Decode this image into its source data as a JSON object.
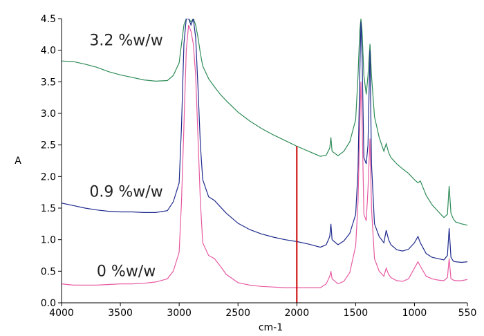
{
  "chart_data": {
    "type": "line",
    "title": "",
    "xlabel": "cm-1",
    "ylabel": "A",
    "xlim": [
      4000,
      550
    ],
    "ylim": [
      0.0,
      4.5
    ],
    "x_reversed": true,
    "grid": false,
    "legend": "none",
    "x_tick_labels": [
      "4000",
      "3500",
      "3000",
      "2500",
      "2000",
      "1500",
      "1000",
      "550"
    ],
    "y_tick_labels": [
      "0.0",
      "0.5",
      "1.0",
      "1.5",
      "2.0",
      "2.5",
      "3.0",
      "3.5",
      "4.0",
      "4.5"
    ],
    "series": [
      {
        "name": "3.2 %w/w",
        "color": "#2e8b57",
        "label_anchor": [
          3450,
          4.08
        ],
        "x": [
          4000,
          3900,
          3800,
          3700,
          3600,
          3500,
          3400,
          3300,
          3200,
          3100,
          3050,
          3000,
          2980,
          2960,
          2940,
          2920,
          2900,
          2880,
          2860,
          2840,
          2820,
          2800,
          2750,
          2700,
          2650,
          2600,
          2500,
          2400,
          2300,
          2200,
          2100,
          2000,
          1900,
          1800,
          1750,
          1720,
          1710,
          1700,
          1650,
          1600,
          1550,
          1500,
          1480,
          1465,
          1455,
          1445,
          1430,
          1410,
          1395,
          1378,
          1365,
          1340,
          1300,
          1260,
          1240,
          1220,
          1200,
          1150,
          1100,
          1050,
          1000,
          970,
          950,
          900,
          850,
          800,
          750,
          720,
          705,
          690,
          670,
          650,
          600,
          550
        ],
        "values": [
          3.83,
          3.82,
          3.78,
          3.73,
          3.66,
          3.61,
          3.57,
          3.53,
          3.51,
          3.52,
          3.6,
          3.8,
          4.1,
          4.4,
          4.5,
          4.5,
          4.45,
          4.5,
          4.4,
          4.2,
          3.95,
          3.75,
          3.55,
          3.42,
          3.3,
          3.2,
          3.02,
          2.88,
          2.76,
          2.66,
          2.57,
          2.48,
          2.4,
          2.32,
          2.34,
          2.45,
          2.62,
          2.4,
          2.33,
          2.4,
          2.55,
          2.9,
          3.6,
          4.3,
          4.5,
          4.3,
          3.6,
          3.3,
          3.6,
          4.1,
          3.6,
          2.95,
          2.62,
          2.4,
          2.52,
          2.38,
          2.3,
          2.2,
          2.12,
          2.05,
          1.95,
          1.9,
          1.93,
          1.7,
          1.55,
          1.45,
          1.35,
          1.4,
          1.85,
          1.42,
          1.33,
          1.28,
          1.25,
          1.23
        ]
      },
      {
        "name": "0.9 %w/w",
        "color": "#1e2a8c",
        "label_anchor": [
          3450,
          1.68
        ],
        "x": [
          4000,
          3900,
          3800,
          3700,
          3600,
          3500,
          3400,
          3300,
          3200,
          3100,
          3050,
          3000,
          2980,
          2960,
          2940,
          2920,
          2900,
          2880,
          2860,
          2840,
          2820,
          2800,
          2750,
          2700,
          2650,
          2600,
          2500,
          2400,
          2300,
          2200,
          2100,
          2000,
          1900,
          1800,
          1750,
          1720,
          1710,
          1700,
          1650,
          1600,
          1550,
          1500,
          1480,
          1465,
          1455,
          1445,
          1430,
          1410,
          1395,
          1378,
          1365,
          1340,
          1300,
          1260,
          1240,
          1220,
          1200,
          1150,
          1100,
          1050,
          1000,
          970,
          950,
          900,
          850,
          800,
          750,
          720,
          705,
          690,
          670,
          650,
          600,
          550
        ],
        "values": [
          1.58,
          1.54,
          1.5,
          1.47,
          1.45,
          1.44,
          1.44,
          1.43,
          1.43,
          1.46,
          1.6,
          1.9,
          2.8,
          4.1,
          4.5,
          4.5,
          4.4,
          4.5,
          4.2,
          3.4,
          2.5,
          1.95,
          1.68,
          1.62,
          1.52,
          1.42,
          1.26,
          1.16,
          1.09,
          1.04,
          1.0,
          0.97,
          0.93,
          0.88,
          0.92,
          1.05,
          1.25,
          1.0,
          0.92,
          0.98,
          1.1,
          1.4,
          2.1,
          3.6,
          4.45,
          3.9,
          2.3,
          2.2,
          2.5,
          4.0,
          2.2,
          1.25,
          1.05,
          0.95,
          1.15,
          1.0,
          0.92,
          0.84,
          0.82,
          0.85,
          0.95,
          1.05,
          0.95,
          0.78,
          0.72,
          0.7,
          0.68,
          0.75,
          1.18,
          0.72,
          0.66,
          0.65,
          0.64,
          0.65
        ]
      },
      {
        "name": "0 %w/w",
        "color": "#e75aa2",
        "label_anchor": [
          3450,
          0.42
        ],
        "x": [
          4000,
          3900,
          3800,
          3700,
          3600,
          3500,
          3400,
          3300,
          3200,
          3100,
          3050,
          3000,
          2980,
          2960,
          2940,
          2920,
          2900,
          2880,
          2860,
          2840,
          2820,
          2800,
          2750,
          2700,
          2650,
          2600,
          2500,
          2400,
          2300,
          2200,
          2100,
          2000,
          1900,
          1800,
          1750,
          1720,
          1710,
          1700,
          1650,
          1600,
          1550,
          1500,
          1480,
          1465,
          1455,
          1445,
          1430,
          1410,
          1395,
          1378,
          1365,
          1340,
          1300,
          1260,
          1240,
          1220,
          1200,
          1150,
          1100,
          1050,
          1000,
          970,
          950,
          900,
          850,
          800,
          750,
          720,
          705,
          690,
          670,
          650,
          600,
          550
        ],
        "values": [
          0.3,
          0.28,
          0.28,
          0.28,
          0.29,
          0.3,
          0.3,
          0.31,
          0.33,
          0.38,
          0.5,
          0.8,
          1.6,
          2.8,
          4.0,
          4.4,
          4.3,
          4.1,
          3.6,
          2.6,
          1.6,
          0.95,
          0.75,
          0.7,
          0.58,
          0.45,
          0.32,
          0.28,
          0.26,
          0.25,
          0.24,
          0.24,
          0.24,
          0.24,
          0.3,
          0.42,
          0.5,
          0.38,
          0.3,
          0.34,
          0.48,
          0.9,
          1.6,
          2.8,
          3.5,
          2.9,
          1.4,
          1.3,
          1.8,
          2.6,
          1.5,
          0.7,
          0.5,
          0.42,
          0.55,
          0.45,
          0.4,
          0.35,
          0.34,
          0.38,
          0.55,
          0.65,
          0.58,
          0.42,
          0.38,
          0.36,
          0.35,
          0.4,
          0.7,
          0.38,
          0.36,
          0.35,
          0.35,
          0.37
        ]
      }
    ],
    "marker_line": {
      "x": 2000,
      "y_from": 0.0,
      "y_to": 2.48,
      "color": "#cc0000"
    }
  }
}
